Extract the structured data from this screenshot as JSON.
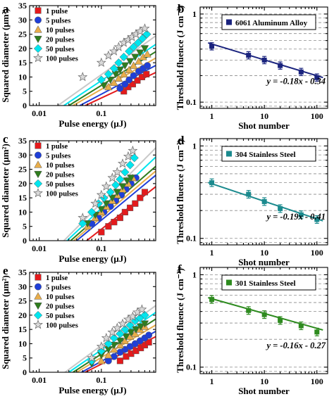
{
  "chart_data": [
    {
      "panel": "a",
      "type": "scatter",
      "xscale": "log",
      "xlabel": "Pulse energy (μJ)",
      "ylabel": "Squared diameter (μm²)",
      "xlim": [
        0.007,
        0.75
      ],
      "ylim": [
        0,
        35
      ],
      "xticks": [
        0.01,
        0.1
      ],
      "xtick_labels": [
        "0.01",
        "0.1"
      ],
      "yticks": [
        0,
        5,
        10,
        15,
        20,
        25,
        30,
        35
      ],
      "ytick_labels": [
        "0",
        "5",
        "10",
        "15",
        "20",
        "25",
        "30",
        "35"
      ],
      "series": [
        {
          "name": "1 pulse",
          "marker": "square",
          "color": "#e41a1c",
          "x": [
            0.23,
            0.27,
            0.32,
            0.38,
            0.45,
            0.53
          ],
          "y": [
            5,
            6.5,
            7.5,
            8.8,
            10,
            11
          ],
          "fit": {
            "x0": 0.055,
            "slope": 10.2
          }
        },
        {
          "name": "5 pulses",
          "marker": "circle",
          "color": "#1f3fd8",
          "x": [
            0.2,
            0.24,
            0.28,
            0.33,
            0.4,
            0.47,
            0.55
          ],
          "y": [
            6,
            7.5,
            9,
            10.5,
            12,
            13,
            14
          ],
          "fit": {
            "x0": 0.045,
            "slope": 11.5
          }
        },
        {
          "name": "10 pulses",
          "marker": "triangle-up",
          "color": "#e8ad4a",
          "x": [
            0.13,
            0.16,
            0.19,
            0.23,
            0.28,
            0.33,
            0.4,
            0.47,
            0.55
          ],
          "y": [
            6.5,
            8,
            9.5,
            11,
            12.5,
            14,
            15.5,
            17,
            18
          ],
          "fit": {
            "x0": 0.035,
            "slope": 12.5
          }
        },
        {
          "name": "20 pulses",
          "marker": "triangle-down",
          "color": "#2f7d1e",
          "x": [
            0.11,
            0.14,
            0.17,
            0.2,
            0.24,
            0.29,
            0.35,
            0.42,
            0.5
          ],
          "y": [
            7,
            9,
            11,
            12.5,
            14,
            15.5,
            17,
            18.5,
            20
          ],
          "fit": {
            "x0": 0.03,
            "slope": 13.5
          }
        },
        {
          "name": "50 pulses",
          "marker": "diamond",
          "color": "#00e5ee",
          "x": [
            0.1,
            0.13,
            0.16,
            0.19,
            0.23,
            0.28,
            0.33,
            0.39,
            0.46,
            0.54
          ],
          "y": [
            9,
            11,
            13,
            15,
            17,
            19,
            20.5,
            22,
            23.5,
            25
          ],
          "fit": {
            "x0": 0.025,
            "slope": 14.5
          }
        },
        {
          "name": "100 pulses",
          "marker": "star",
          "color": "#c8c8c8",
          "x": [
            0.05,
            0.1,
            0.13,
            0.16,
            0.19,
            0.23,
            0.27,
            0.31,
            0.36,
            0.42,
            0.5
          ],
          "y": [
            10,
            15,
            17.5,
            19,
            20.5,
            22,
            23,
            24,
            25,
            26,
            27
          ],
          "fit": {
            "x0": 0.02,
            "slope": 15.5
          }
        }
      ]
    },
    {
      "panel": "b",
      "type": "line",
      "xscale": "log",
      "yscale": "log",
      "xlabel": "Shot number",
      "ylabel": "Threshold fluence (J cm⁻²)",
      "xlim": [
        0.6,
        160
      ],
      "ylim": [
        0.085,
        1.2
      ],
      "xticks": [
        1,
        10,
        100
      ],
      "xtick_labels": [
        "1",
        "10",
        "100"
      ],
      "yticks": [
        0.1,
        1
      ],
      "ytick_labels": [
        "0.1",
        "1"
      ],
      "legend": "6061 Aluminum Alloy",
      "equation": "y = -0.18x - 0.34",
      "color": "#1a237e",
      "x": [
        1,
        5,
        10,
        20,
        50,
        100
      ],
      "y": [
        0.43,
        0.34,
        0.3,
        0.26,
        0.22,
        0.19
      ],
      "fit": {
        "a": 0.457,
        "b": -0.18
      }
    },
    {
      "panel": "c",
      "type": "scatter",
      "xscale": "log",
      "xlabel": "Pulse energy (μJ)",
      "ylabel": "Squared diameter (μm²)",
      "xlim": [
        0.007,
        0.75
      ],
      "ylim": [
        0,
        35
      ],
      "xticks": [
        0.01,
        0.1
      ],
      "xtick_labels": [
        "0.01",
        "0.1"
      ],
      "yticks": [
        0,
        5,
        10,
        15,
        20,
        25,
        30,
        35
      ],
      "ytick_labels": [
        "0",
        "5",
        "10",
        "15",
        "20",
        "25",
        "30",
        "35"
      ],
      "series": [
        {
          "name": "1 pulse",
          "marker": "square",
          "color": "#e41a1c",
          "x": [
            0.1,
            0.13,
            0.16,
            0.2,
            0.24,
            0.29,
            0.35,
            0.42,
            0.5
          ],
          "y": [
            3,
            5,
            6.5,
            8,
            10,
            11.5,
            13,
            15,
            17
          ],
          "fit": {
            "x0": 0.058,
            "slope": 17
          }
        },
        {
          "name": "5 pulses",
          "marker": "circle",
          "color": "#1f3fd8",
          "x": [
            0.07,
            0.09,
            0.11,
            0.14,
            0.17,
            0.21,
            0.25,
            0.3,
            0.36
          ],
          "y": [
            6,
            8,
            10,
            12,
            14,
            16,
            18,
            20,
            22
          ],
          "fit": {
            "x0": 0.04,
            "slope": 18
          }
        },
        {
          "name": "10 pulses",
          "marker": "triangle-up",
          "color": "#e8ad4a",
          "x": [
            0.06,
            0.08,
            0.1,
            0.12,
            0.15,
            0.18,
            0.22,
            0.27,
            0.32
          ],
          "y": [
            5,
            8,
            10,
            12,
            14,
            16,
            18,
            20,
            22
          ],
          "fit": {
            "x0": 0.036,
            "slope": 18.5
          }
        },
        {
          "name": "20 pulses",
          "marker": "triangle-down",
          "color": "#2f7d1e",
          "x": [
            0.06,
            0.08,
            0.1,
            0.12,
            0.15,
            0.18,
            0.22,
            0.26,
            0.3
          ],
          "y": [
            6,
            9,
            11,
            13,
            15,
            17,
            19,
            21,
            22
          ],
          "fit": {
            "x0": 0.032,
            "slope": 19
          }
        },
        {
          "name": "50 pulses",
          "marker": "diamond",
          "color": "#00e5ee",
          "x": [
            0.05,
            0.07,
            0.09,
            0.11,
            0.14,
            0.17,
            0.2,
            0.24,
            0.29,
            0.34
          ],
          "y": [
            6,
            10,
            13,
            15,
            17,
            19.5,
            21.5,
            24,
            26.5,
            29
          ],
          "fit": {
            "x0": 0.028,
            "slope": 20.5
          }
        },
        {
          "name": "100 pulses",
          "marker": "star",
          "color": "#c8c8c8",
          "x": [
            0.05,
            0.08,
            0.1,
            0.12,
            0.15,
            0.18,
            0.22,
            0.27,
            0.32
          ],
          "y": [
            8,
            13,
            16,
            19,
            22,
            24,
            27,
            29.5,
            31.5
          ],
          "fit": {
            "x0": 0.025,
            "slope": 22
          }
        }
      ]
    },
    {
      "panel": "d",
      "type": "line",
      "xscale": "log",
      "yscale": "log",
      "xlabel": "Shot number",
      "ylabel": "Threshold fluence (J cm⁻²)",
      "xlim": [
        0.6,
        160
      ],
      "ylim": [
        0.085,
        1.2
      ],
      "xticks": [
        1,
        10,
        100
      ],
      "xtick_labels": [
        "1",
        "10",
        "100"
      ],
      "yticks": [
        0.1,
        1
      ],
      "ytick_labels": [
        "0.1",
        "1"
      ],
      "legend": "304 Stainless Steel",
      "equation": "y = -0.19x - 0.41",
      "color": "#1b8a8e",
      "x": [
        1,
        5,
        10,
        20,
        50,
        100
      ],
      "y": [
        0.4,
        0.3,
        0.25,
        0.21,
        0.18,
        0.16
      ],
      "fit": {
        "a": 0.39,
        "b": -0.19
      }
    },
    {
      "panel": "e",
      "type": "scatter",
      "xscale": "log",
      "xlabel": "Pulse energy (μJ)",
      "ylabel": "Squared diameter (μm²)",
      "xlim": [
        0.007,
        0.75
      ],
      "ylim": [
        0,
        35
      ],
      "xticks": [
        0.01,
        0.1
      ],
      "xtick_labels": [
        "0.01",
        "0.1"
      ],
      "yticks": [
        0,
        5,
        10,
        15,
        20,
        25,
        30,
        35
      ],
      "ytick_labels": [
        "0",
        "5",
        "10",
        "15",
        "20",
        "25",
        "30",
        "35"
      ],
      "series": [
        {
          "name": "1 pulse",
          "marker": "square",
          "color": "#e41a1c",
          "x": [
            0.2,
            0.25,
            0.3,
            0.36,
            0.43,
            0.5,
            0.58
          ],
          "y": [
            4,
            5.5,
            6.5,
            7.5,
            8.5,
            9.5,
            10.5
          ],
          "fit": {
            "x0": 0.055,
            "slope": 11
          }
        },
        {
          "name": "5 pulses",
          "marker": "circle",
          "color": "#1f3fd8",
          "x": [
            0.13,
            0.16,
            0.2,
            0.24,
            0.29,
            0.35,
            0.42,
            0.5,
            0.58
          ],
          "y": [
            4,
            5.5,
            7,
            8,
            9,
            10,
            11,
            12,
            13
          ],
          "fit": {
            "x0": 0.048,
            "slope": 12
          }
        },
        {
          "name": "10 pulses",
          "marker": "triangle-up",
          "color": "#e8ad4a",
          "x": [
            0.1,
            0.13,
            0.16,
            0.2,
            0.24,
            0.29,
            0.35,
            0.42,
            0.5
          ],
          "y": [
            4,
            6,
            8,
            9.5,
            11,
            12.5,
            13.5,
            15,
            16
          ],
          "fit": {
            "x0": 0.04,
            "slope": 13
          }
        },
        {
          "name": "20 pulses",
          "marker": "triangle-down",
          "color": "#2f7d1e",
          "x": [
            0.07,
            0.1,
            0.13,
            0.16,
            0.2,
            0.25,
            0.3,
            0.36,
            0.43,
            0.5
          ],
          "y": [
            3,
            6,
            8,
            9.5,
            11,
            12.5,
            14,
            15,
            16,
            17
          ],
          "fit": {
            "x0": 0.035,
            "slope": 14
          }
        },
        {
          "name": "50 pulses",
          "marker": "diamond",
          "color": "#00e5ee",
          "x": [
            0.07,
            0.1,
            0.13,
            0.16,
            0.2,
            0.24,
            0.29,
            0.35,
            0.42,
            0.5
          ],
          "y": [
            4,
            7.5,
            10,
            12,
            13.5,
            15,
            16.5,
            18,
            19,
            20
          ],
          "fit": {
            "x0": 0.03,
            "slope": 15
          }
        },
        {
          "name": "100 pulses",
          "marker": "star",
          "color": "#c8c8c8",
          "x": [
            0.07,
            0.1,
            0.12,
            0.15,
            0.18,
            0.22,
            0.27,
            0.32,
            0.38,
            0.45
          ],
          "y": [
            5,
            9,
            12,
            14,
            15.5,
            17,
            18.5,
            19.5,
            21,
            22
          ],
          "fit": {
            "x0": 0.026,
            "slope": 16
          }
        }
      ]
    },
    {
      "panel": "f",
      "type": "line",
      "xscale": "log",
      "yscale": "log",
      "xlabel": "Shot number",
      "ylabel": "Threshold fluence (J cm⁻²)",
      "xlim": [
        0.6,
        160
      ],
      "ylim": [
        0.085,
        1.2
      ],
      "xticks": [
        1,
        10,
        100
      ],
      "xtick_labels": [
        "1",
        "10",
        "100"
      ],
      "yticks": [
        0.1,
        1
      ],
      "ytick_labels": [
        "0.1",
        "1"
      ],
      "legend": "301 Stainless Steel",
      "equation": "y = -0.16x - 0.27",
      "color": "#2e8b1f",
      "x": [
        1,
        5,
        10,
        20,
        50,
        100
      ],
      "y": [
        0.54,
        0.41,
        0.37,
        0.32,
        0.28,
        0.24
      ],
      "fit": {
        "a": 0.55,
        "b": -0.16
      }
    }
  ]
}
